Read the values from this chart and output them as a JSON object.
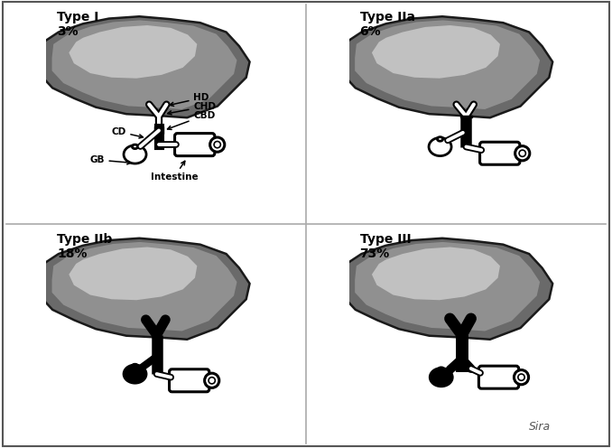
{
  "bg_color": "#ffffff",
  "liver_dark": "#6a6a6a",
  "liver_mid": "#959595",
  "liver_light": "#c8c8c8",
  "liver_edge": "#1a1a1a",
  "duct_lw_outer": 6,
  "duct_lw_inner": 3,
  "panel_titles": [
    "Type I\n3%",
    "Type IIa\n6%",
    "Type IIb\n18%",
    "Type III\n73%"
  ],
  "title_fontsize": 10,
  "label_fontsize": 7.5,
  "signature": "Sira",
  "divider_color": "#aaaaaa",
  "outer_border_color": "#555555"
}
